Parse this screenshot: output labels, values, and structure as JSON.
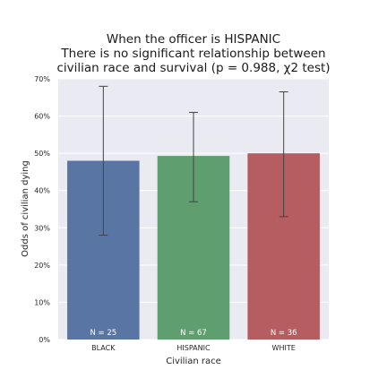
{
  "chart_data": {
    "type": "bar",
    "title_lines": [
      "When the officer is HISPANIC",
      "There is no significant relationship between",
      "civilian race and survival (p = 0.988, χ2 test)"
    ],
    "xlabel": "Civilian race",
    "ylabel": "Odds of civilian dying",
    "categories": [
      "BLACK",
      "HISPANIC",
      "WHITE"
    ],
    "values": [
      0.48,
      0.493,
      0.5
    ],
    "error_low": [
      0.28,
      0.37,
      0.33
    ],
    "error_high": [
      0.68,
      0.61,
      0.665
    ],
    "n_labels": [
      "N = 25",
      "N = 67",
      "N = 36"
    ],
    "colors": [
      "#5975a4",
      "#5f9e6e",
      "#b55d60"
    ],
    "ylim": [
      0,
      0.7
    ],
    "yticks": [
      0,
      0.1,
      0.2,
      0.3,
      0.4,
      0.5,
      0.6,
      0.7
    ],
    "ytick_labels": [
      "0%",
      "10%",
      "20%",
      "30%",
      "40%",
      "50%",
      "60%",
      "70%"
    ],
    "grid": true,
    "plot_background": "#eaeaf2",
    "errorbar_color": "#424242"
  }
}
